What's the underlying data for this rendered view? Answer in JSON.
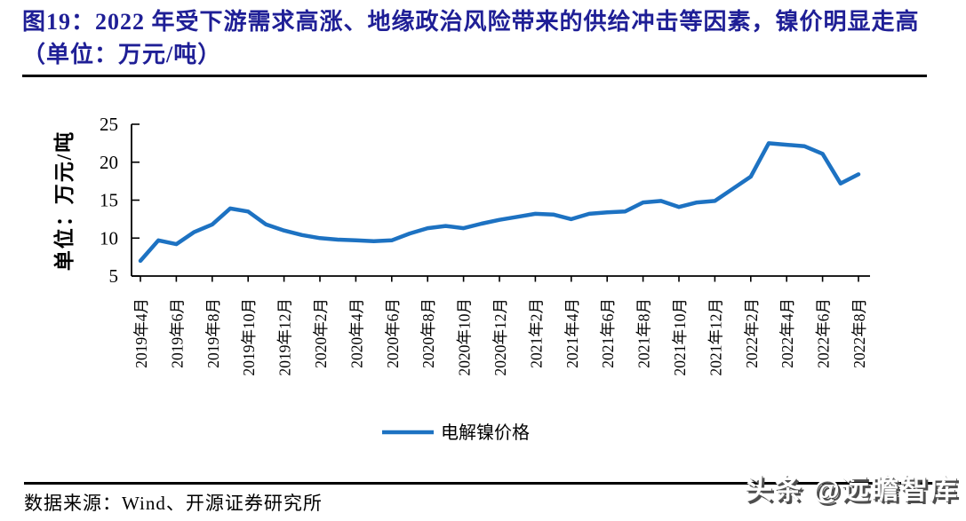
{
  "header": {
    "title": "图19：2022 年受下游需求高涨、地缘政治风险带来的供给冲击等因素，镍价明显走高（单位：万元/吨）"
  },
  "footer": {
    "source": "数据来源：Wind、开源证券研究所",
    "watermark": "头条 @远瞻智库"
  },
  "colors": {
    "title": "#1F1F96",
    "line": "#1D72C2",
    "axis": "#000000"
  },
  "chart_data": {
    "type": "line",
    "title": "",
    "xlabel": "",
    "ylabel": "单位：万元/吨",
    "ylim": [
      5,
      25
    ],
    "yticks": [
      5,
      10,
      15,
      20,
      25
    ],
    "grid": false,
    "legend_position": "bottom",
    "x_tick_labels": [
      "2019年4月",
      "2019年6月",
      "2019年8月",
      "2019年10月",
      "2019年12月",
      "2020年2月",
      "2020年4月",
      "2020年6月",
      "2020年8月",
      "2020年10月",
      "2020年12月",
      "2021年2月",
      "2021年4月",
      "2021年6月",
      "2021年8月",
      "2021年10月",
      "2021年12月",
      "2022年2月",
      "2022年4月",
      "2022年6月",
      "2022年8月"
    ],
    "x": [
      "2019-04",
      "2019-05",
      "2019-06",
      "2019-07",
      "2019-08",
      "2019-09",
      "2019-10",
      "2019-11",
      "2019-12",
      "2020-01",
      "2020-02",
      "2020-03",
      "2020-04",
      "2020-05",
      "2020-06",
      "2020-07",
      "2020-08",
      "2020-09",
      "2020-10",
      "2020-11",
      "2020-12",
      "2021-01",
      "2021-02",
      "2021-03",
      "2021-04",
      "2021-05",
      "2021-06",
      "2021-07",
      "2021-08",
      "2021-09",
      "2021-10",
      "2021-11",
      "2021-12",
      "2022-01",
      "2022-02",
      "2022-03",
      "2022-04",
      "2022-05",
      "2022-06",
      "2022-07",
      "2022-08"
    ],
    "series": [
      {
        "name": "电解镍价格",
        "color": "#1D72C2",
        "values": [
          7.0,
          9.7,
          9.2,
          10.8,
          11.8,
          13.9,
          13.5,
          11.8,
          11.0,
          10.4,
          10.0,
          9.8,
          9.7,
          9.6,
          9.7,
          10.6,
          11.3,
          11.6,
          11.3,
          11.9,
          12.4,
          12.8,
          13.2,
          13.1,
          12.5,
          13.2,
          13.4,
          13.5,
          14.7,
          14.9,
          14.1,
          14.7,
          14.9,
          16.5,
          18.1,
          22.5,
          22.3,
          22.1,
          21.1,
          17.2,
          18.4
        ]
      }
    ]
  }
}
